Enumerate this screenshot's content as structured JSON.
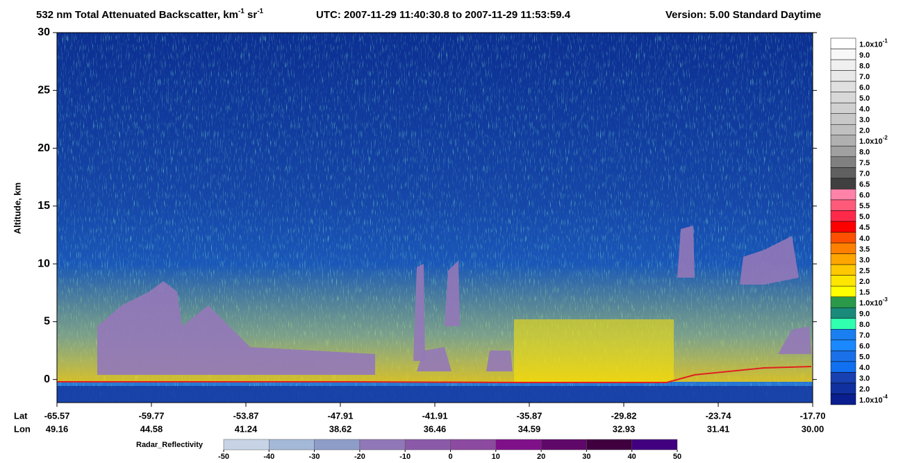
{
  "chart_data": {
    "type": "curtain",
    "title": {
      "text": "532 nm Total Attenuated Backscatter, km",
      "sup1": "-1",
      "mid": " sr",
      "sup2": "-1"
    },
    "time_range": "UTC:  2007-11-29 11:40:30.8  to  2007-11-29 11:53:59.4",
    "version": "Version: 5.00  Standard  Daytime",
    "ylabel": "Altitude, km",
    "ylim": [
      -2,
      30
    ],
    "yticks": [
      0,
      5,
      10,
      15,
      20,
      25,
      30
    ],
    "x_rows": [
      {
        "name": "Lat",
        "values": [
          -65.57,
          -59.77,
          -53.87,
          -47.91,
          -41.91,
          -35.87,
          -29.82,
          -23.74,
          {
            "value": -17.7,
            "label": "-17.70"
          }
        ]
      },
      {
        "name": "Lon",
        "values": [
          49.16,
          44.58,
          41.24,
          38.62,
          36.46,
          34.59,
          32.93,
          31.41,
          {
            "value": 30,
            "label": "30.00"
          }
        ]
      }
    ],
    "colorbar": {
      "labels": [
        {
          "text": "1.0x10",
          "sup": "-1"
        },
        "9.0",
        "8.0",
        "7.0",
        "6.0",
        "5.0",
        "4.0",
        "3.0",
        "2.0",
        {
          "text": "1.0x10",
          "sup": "-2"
        },
        "8.0",
        "7.5",
        "7.0",
        "6.5",
        "6.0",
        "5.5",
        "5.0",
        "4.5",
        "4.0",
        "3.5",
        "3.0",
        "2.5",
        "2.0",
        "1.5",
        {
          "text": "1.0x10",
          "sup": "-3"
        },
        "9.0",
        "8.0",
        "7.0",
        "6.0",
        "5.0",
        "4.0",
        "3.0",
        "2.0",
        {
          "text": "1.0x10",
          "sup": "-4"
        }
      ],
      "colors": [
        "#ffffff",
        "#f8f8f8",
        "#f0f0f0",
        "#e8e8e8",
        "#e0e0e0",
        "#d8d8d8",
        "#d0d0d0",
        "#c8c8c8",
        "#c0c0c0",
        "#b0b0b0",
        "#a0a0a0",
        "#808080",
        "#606060",
        "#404040",
        "#ff82a8",
        "#ff5a7a",
        "#ff2a4a",
        "#ff0000",
        "#ff5000",
        "#ff8000",
        "#ffa500",
        "#ffc800",
        "#ffe600",
        "#ffff00",
        "#2a9a4a",
        "#1a8a7a",
        "#30ffb0",
        "#1a7ff0",
        "#1a88ff",
        "#1a70e8",
        "#1070f0",
        "#1840b0",
        "#1030a0",
        "#0a1e90"
      ]
    },
    "radar_colorbar": {
      "title": "Radar_Reflectivity",
      "ticks": [
        -50,
        -40,
        -30,
        -20,
        -10,
        0,
        10,
        20,
        30,
        40,
        50
      ],
      "colors": [
        "#c8d4e6",
        "#a4b8d8",
        "#8e9cc8",
        "#9078b8",
        "#8a5aa8",
        "#8c4aa0",
        "#80108a",
        "#60086a",
        "#400040",
        "#400080"
      ]
    }
  }
}
